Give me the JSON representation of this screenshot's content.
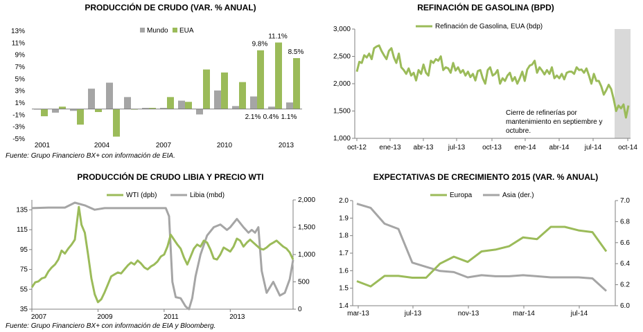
{
  "colors": {
    "green": "#9bbb59",
    "gray": "#a5a5a5",
    "shade": "#d9d9d9",
    "axis": "#7f7f7f"
  },
  "chart_data": [
    {
      "type": "bar",
      "title": "PRODUCCIÓN DE CRUDO (VAR. % ANUAL)",
      "categories": [
        "2000",
        "2001",
        "2002",
        "2003",
        "2004",
        "2005",
        "2006",
        "2007",
        "2008",
        "2009",
        "2010",
        "2011",
        "2012",
        "2013",
        "2014"
      ],
      "xtick_labels": [
        "2001",
        "2004",
        "2007",
        "2010",
        "2013"
      ],
      "ylim": [
        -5,
        13
      ],
      "yticks": [
        "13%",
        "11%",
        "9%",
        "7%",
        "5%",
        "3%",
        "1%",
        "-1%",
        "-3%",
        "-5%"
      ],
      "series": [
        {
          "name": "Mundo",
          "values": [
            0.0,
            -0.6,
            -0.3,
            3.4,
            4.4,
            2.0,
            0.2,
            0.2,
            1.4,
            -0.9,
            3.1,
            0.5,
            2.1,
            0.4,
            1.1
          ]
        },
        {
          "name": "EUA",
          "values": [
            -1.2,
            0.4,
            -2.6,
            -0.5,
            -4.6,
            -0.1,
            0.2,
            2.0,
            1.2,
            6.6,
            6.1,
            4.5,
            9.8,
            11.1,
            8.5
          ]
        }
      ],
      "annotations": [
        {
          "category": "2012",
          "series": "EUA",
          "text": "9.8%"
        },
        {
          "category": "2013",
          "series": "EUA",
          "text": "11.1%"
        },
        {
          "category": "2014",
          "series": "EUA",
          "text": "8.5%"
        },
        {
          "category": "2012",
          "series": "Mundo",
          "text": "2.1%"
        },
        {
          "category": "2013",
          "series": "Mundo",
          "text": "0.4%"
        },
        {
          "category": "2014",
          "series": "Mundo",
          "text": "1.1%"
        }
      ],
      "source": "Fuente: Grupo Financiero BX+ con información de EIA."
    },
    {
      "type": "line",
      "title": "REFINACIÓN DE GASOLINA (BPD)",
      "xtick_labels": [
        "oct-12",
        "ene-13",
        "abr-13",
        "jul-13",
        "oct-13",
        "ene-14",
        "abr-14",
        "jul-14",
        "oct-14"
      ],
      "ylim": [
        1000,
        3000
      ],
      "yticks": [
        "3,000",
        "2,500",
        "2,000",
        "1,500",
        "1,000"
      ],
      "series": [
        {
          "name": "Refinación de Gasolina, EUA (bdp)",
          "values": [
            2220,
            2400,
            2380,
            2520,
            2480,
            2550,
            2450,
            2650,
            2680,
            2700,
            2600,
            2520,
            2450,
            2600,
            2650,
            2480,
            2380,
            2550,
            2300,
            2250,
            2180,
            2280,
            2150,
            2200,
            2060,
            2250,
            2180,
            2350,
            2200,
            2150,
            2420,
            2380,
            2450,
            2420,
            2500,
            2250,
            2300,
            2280,
            2200,
            2380,
            2240,
            2300,
            2200,
            2250,
            2150,
            2220,
            2120,
            2180,
            2060,
            2230,
            2250,
            2100,
            2000,
            2250,
            2300,
            2150,
            2180,
            2250,
            2000,
            2100,
            2050,
            2150,
            2200,
            2050,
            2120,
            2000,
            2100,
            2220,
            2050,
            2260,
            2330,
            2350,
            2420,
            2200,
            2300,
            2240,
            2170,
            2250,
            2180,
            2300,
            2100,
            2150,
            2100,
            2180,
            2080,
            2200,
            2220,
            2220,
            2180,
            2300,
            2250,
            2260,
            2200,
            2280,
            2150,
            2000,
            2180,
            2050,
            2050,
            1950,
            1800,
            1880,
            1980,
            1900,
            1720,
            1500,
            1600,
            1550,
            1620,
            1380,
            1600
          ]
        }
      ],
      "shaded_region": "sep-14 a oct-14",
      "annotation": "Cierre de refinerías por mantenimiento  en septiembre y octubre."
    },
    {
      "type": "line",
      "title": "PRODUCCIÓN DE CRUDO LIBIA Y PRECIO WTI",
      "xtick_labels": [
        "2007",
        "2009",
        "2011",
        "2013"
      ],
      "xlim": [
        2007,
        2014.9
      ],
      "ylim_left": [
        35,
        145
      ],
      "ylim_right": [
        0,
        2000
      ],
      "yticks_left": [
        "135",
        "115",
        "95",
        "75",
        "55",
        "35"
      ],
      "yticks_right": [
        "2,000",
        "1,500",
        "1,000",
        "500",
        "0"
      ],
      "series": [
        {
          "name": "WTI (dpb)",
          "axis": "left",
          "x": [
            2007.0,
            2007.1,
            2007.2,
            2007.3,
            2007.4,
            2007.5,
            2007.6,
            2007.7,
            2007.8,
            2007.9,
            2008.0,
            2008.1,
            2008.2,
            2008.3,
            2008.42,
            2008.5,
            2008.6,
            2008.7,
            2008.8,
            2008.9,
            2009.0,
            2009.1,
            2009.2,
            2009.3,
            2009.4,
            2009.5,
            2009.6,
            2009.7,
            2009.8,
            2009.9,
            2010.0,
            2010.1,
            2010.2,
            2010.3,
            2010.4,
            2010.5,
            2010.6,
            2010.7,
            2010.8,
            2010.9,
            2011.0,
            2011.1,
            2011.2,
            2011.3,
            2011.4,
            2011.5,
            2011.6,
            2011.7,
            2011.8,
            2011.9,
            2012.0,
            2012.1,
            2012.2,
            2012.3,
            2012.4,
            2012.5,
            2012.6,
            2012.7,
            2012.8,
            2012.9,
            2013.0,
            2013.1,
            2013.2,
            2013.3,
            2013.4,
            2013.5,
            2013.6,
            2013.7,
            2013.8,
            2013.9,
            2014.0,
            2014.1,
            2014.2,
            2014.3,
            2014.4,
            2014.5,
            2014.6,
            2014.7,
            2014.8,
            2014.9
          ],
          "values": [
            57,
            62,
            63,
            66,
            67,
            73,
            77,
            80,
            85,
            94,
            91,
            96,
            100,
            105,
            138,
            120,
            112,
            90,
            66,
            50,
            42,
            45,
            52,
            60,
            68,
            70,
            72,
            71,
            75,
            79,
            82,
            80,
            84,
            81,
            77,
            75,
            78,
            80,
            83,
            88,
            90,
            98,
            110,
            105,
            100,
            96,
            87,
            80,
            88,
            96,
            100,
            98,
            104,
            102,
            95,
            86,
            85,
            90,
            97,
            95,
            93,
            98,
            106,
            104,
            98,
            102,
            105,
            102,
            99,
            96,
            95,
            97,
            100,
            102,
            104,
            101,
            98,
            96,
            92,
            85
          ]
        },
        {
          "name": "Libia (mbd)",
          "axis": "right",
          "x": [
            2007.0,
            2007.5,
            2008.0,
            2008.3,
            2008.6,
            2008.9,
            2009.2,
            2009.6,
            2010.0,
            2010.5,
            2010.9,
            2011.05,
            2011.15,
            2011.25,
            2011.35,
            2011.5,
            2011.65,
            2011.75,
            2011.85,
            2011.95,
            2012.1,
            2012.3,
            2012.5,
            2012.7,
            2012.9,
            2013.0,
            2013.2,
            2013.4,
            2013.55,
            2013.65,
            2013.75,
            2013.85,
            2013.95,
            2014.1,
            2014.3,
            2014.5,
            2014.65,
            2014.8,
            2014.9
          ],
          "values": [
            1850,
            1860,
            1860,
            1950,
            1900,
            1820,
            1850,
            1850,
            1850,
            1850,
            1850,
            1850,
            1700,
            500,
            220,
            200,
            50,
            0,
            200,
            600,
            1000,
            1350,
            1500,
            1550,
            1450,
            1500,
            1650,
            1500,
            1400,
            1450,
            1400,
            1500,
            700,
            300,
            500,
            250,
            300,
            550,
            900
          ]
        }
      ],
      "source": "Fuente: Grupo Financiero BX+ con información de EIA y Bloomberg."
    },
    {
      "type": "line",
      "title": "EXPECTATIVAS DE CRECIMIENTO 2015  (VAR. % ANUAL)",
      "xtick_labels": [
        "mar-13",
        "jul-13",
        "nov-13",
        "mar-14",
        "jul-14"
      ],
      "ylim_left": [
        1.4,
        2.0
      ],
      "ylim_right": [
        6.0,
        7.0
      ],
      "yticks_left": [
        "2.0",
        "1.9",
        "1.8",
        "1.7",
        "1.6",
        "1.5",
        "1.4"
      ],
      "yticks_right": [
        "7.0",
        "6.8",
        "6.6",
        "6.4",
        "6.2",
        "6.0"
      ],
      "series": [
        {
          "name": "Europa",
          "axis": "left",
          "values": [
            1.54,
            1.51,
            1.57,
            1.57,
            1.56,
            1.56,
            1.64,
            1.68,
            1.65,
            1.71,
            1.72,
            1.74,
            1.79,
            1.78,
            1.85,
            1.85,
            1.83,
            1.82,
            1.71
          ]
        },
        {
          "name": "Asia (der.)",
          "axis": "right",
          "values": [
            6.97,
            6.93,
            6.78,
            6.73,
            6.41,
            6.37,
            6.33,
            6.32,
            6.27,
            6.29,
            6.28,
            6.28,
            6.29,
            6.28,
            6.27,
            6.27,
            6.27,
            6.26,
            6.14
          ]
        }
      ]
    }
  ]
}
